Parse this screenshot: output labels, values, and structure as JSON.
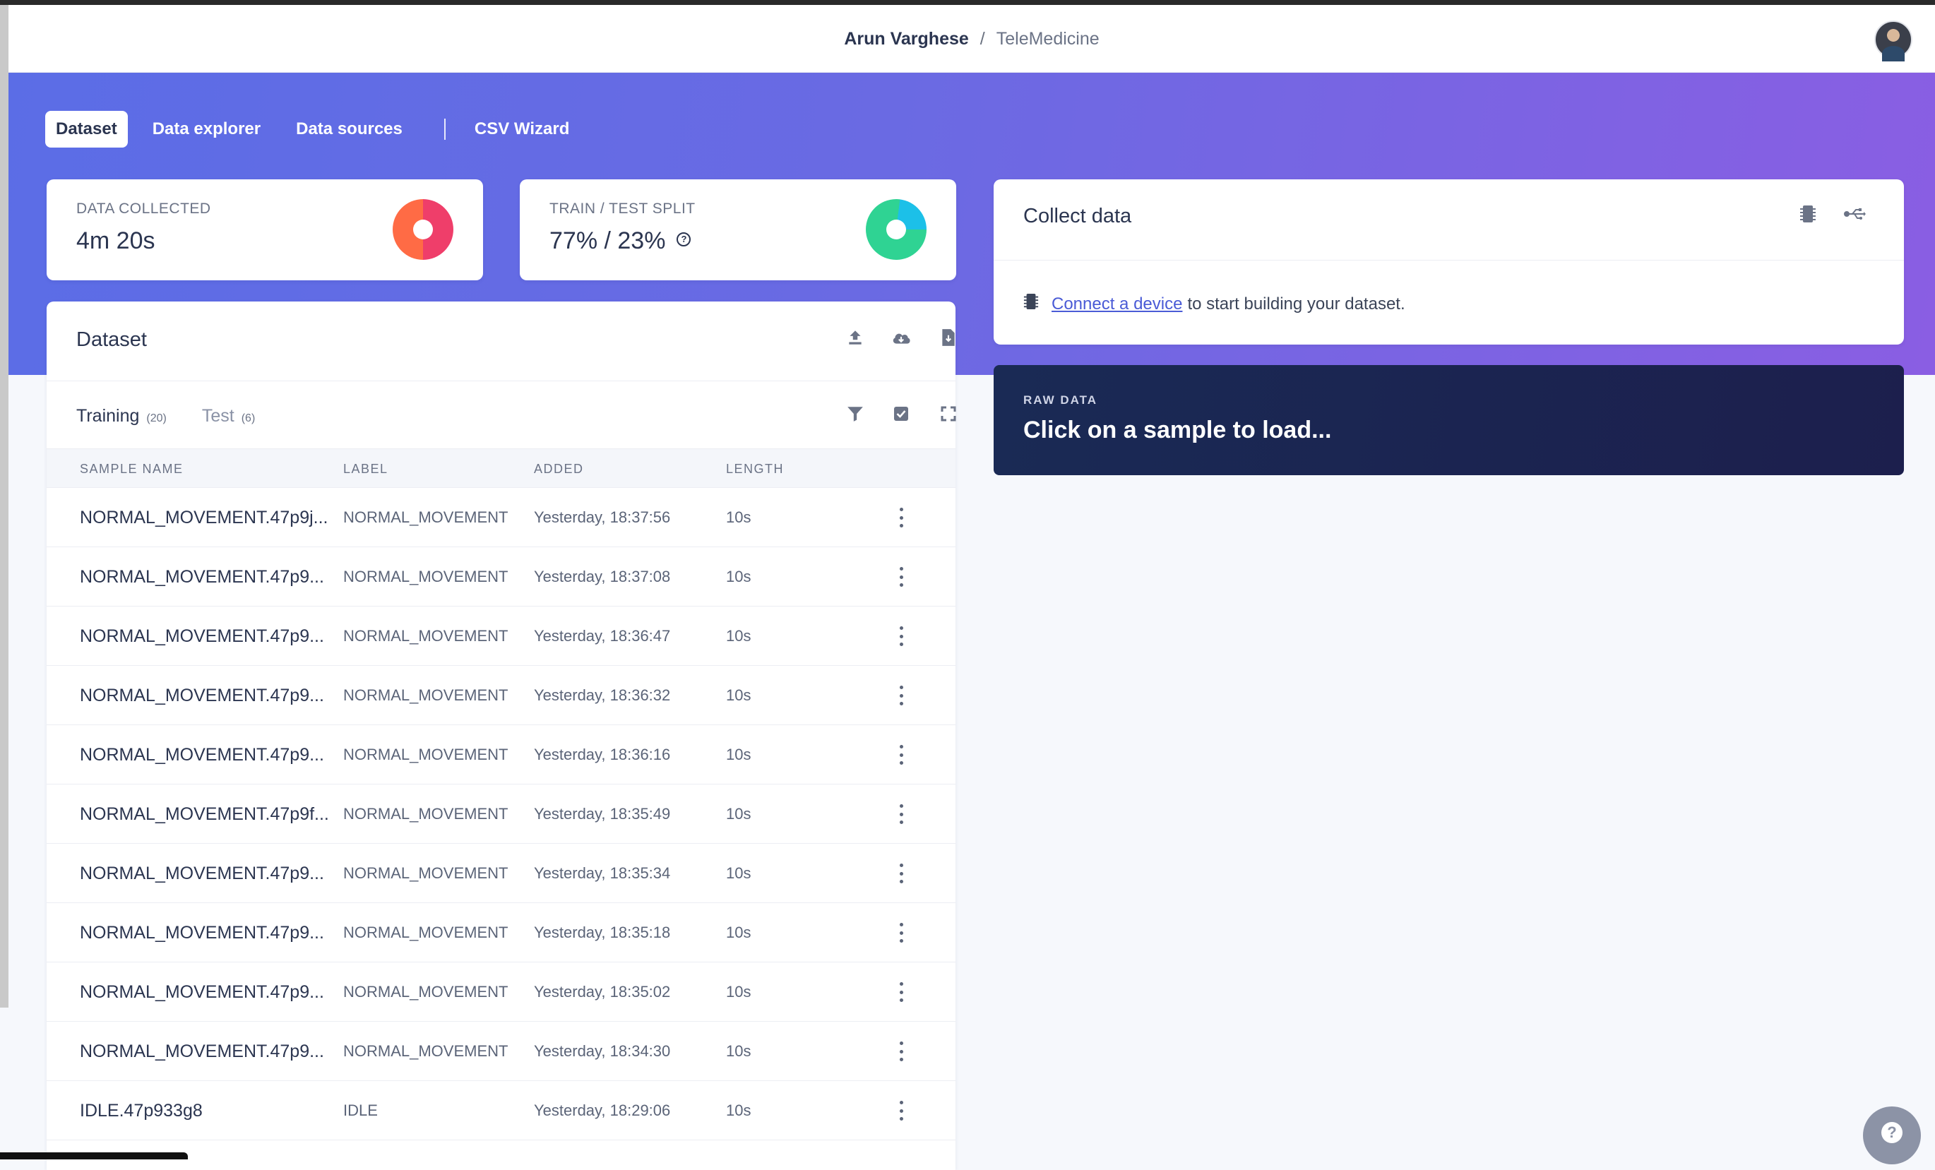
{
  "header": {
    "user": "Arun Varghese",
    "separator": "/",
    "project": "TeleMedicine"
  },
  "nav": {
    "items": [
      "Dataset",
      "Data explorer",
      "Data sources"
    ],
    "extra": "CSV Wizard",
    "active": "Dataset"
  },
  "stats": {
    "data_collected": {
      "label": "DATA COLLECTED",
      "value": "4m 20s"
    },
    "train_test": {
      "label": "TRAIN / TEST SPLIT",
      "value": "77% / 23%",
      "train_fraction": 0.77
    }
  },
  "colors": {
    "accent_left": "#5b6de6",
    "accent_right": "#8a5ee3",
    "donut_collected_a": "#ff6b45",
    "donut_collected_b": "#ef3e6a",
    "donut_train": "#2fd393",
    "donut_test": "#1cc0e8"
  },
  "dataset": {
    "title": "Dataset",
    "tabs": {
      "training": {
        "label": "Training",
        "count": "(20)"
      },
      "test": {
        "label": "Test",
        "count": "(6)"
      }
    },
    "columns": [
      "SAMPLE NAME",
      "LABEL",
      "ADDED",
      "LENGTH"
    ],
    "rows": [
      {
        "name": "NORMAL_MOVEMENT.47p9j...",
        "label": "NORMAL_MOVEMENT",
        "added": "Yesterday, 18:37:56",
        "length": "10s"
      },
      {
        "name": "NORMAL_MOVEMENT.47p9...",
        "label": "NORMAL_MOVEMENT",
        "added": "Yesterday, 18:37:08",
        "length": "10s"
      },
      {
        "name": "NORMAL_MOVEMENT.47p9...",
        "label": "NORMAL_MOVEMENT",
        "added": "Yesterday, 18:36:47",
        "length": "10s"
      },
      {
        "name": "NORMAL_MOVEMENT.47p9...",
        "label": "NORMAL_MOVEMENT",
        "added": "Yesterday, 18:36:32",
        "length": "10s"
      },
      {
        "name": "NORMAL_MOVEMENT.47p9...",
        "label": "NORMAL_MOVEMENT",
        "added": "Yesterday, 18:36:16",
        "length": "10s"
      },
      {
        "name": "NORMAL_MOVEMENT.47p9f...",
        "label": "NORMAL_MOVEMENT",
        "added": "Yesterday, 18:35:49",
        "length": "10s"
      },
      {
        "name": "NORMAL_MOVEMENT.47p9...",
        "label": "NORMAL_MOVEMENT",
        "added": "Yesterday, 18:35:34",
        "length": "10s"
      },
      {
        "name": "NORMAL_MOVEMENT.47p9...",
        "label": "NORMAL_MOVEMENT",
        "added": "Yesterday, 18:35:18",
        "length": "10s"
      },
      {
        "name": "NORMAL_MOVEMENT.47p9...",
        "label": "NORMAL_MOVEMENT",
        "added": "Yesterday, 18:35:02",
        "length": "10s"
      },
      {
        "name": "NORMAL_MOVEMENT.47p9...",
        "label": "NORMAL_MOVEMENT",
        "added": "Yesterday, 18:34:30",
        "length": "10s"
      },
      {
        "name": "IDLE.47p933g8",
        "label": "IDLE",
        "added": "Yesterday, 18:29:06",
        "length": "10s"
      }
    ]
  },
  "collect": {
    "title": "Collect data",
    "link": "Connect a device",
    "suffix": "to start building your dataset."
  },
  "raw": {
    "label": "RAW DATA",
    "title": "Click on a sample to load..."
  },
  "icons": {
    "upload": "upload-icon",
    "cloud": "cloud-download-icon",
    "file": "file-download-icon",
    "filter": "filter-icon",
    "select": "checkbox-icon",
    "expand": "expand-icon",
    "chip": "chip-icon",
    "usb": "usb-icon",
    "help": "help-icon"
  }
}
